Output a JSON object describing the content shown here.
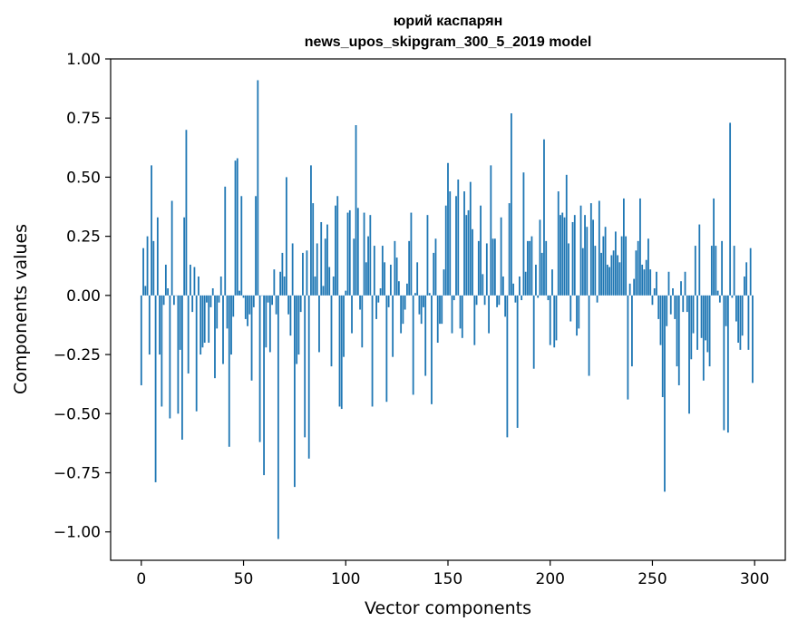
{
  "chart_data": {
    "type": "bar",
    "title": "юрий каспарян",
    "subtitle": "news_upos_skipgram_300_5_2019 model",
    "xlabel": "Vector components",
    "ylabel": "Components values",
    "xlim": [
      -15,
      315
    ],
    "ylim": [
      -1.12,
      1.0
    ],
    "xticks": [
      0,
      50,
      100,
      150,
      200,
      250,
      300
    ],
    "xtick_labels": [
      "0",
      "50",
      "100",
      "150",
      "200",
      "250",
      "300"
    ],
    "yticks": [
      1.0,
      0.75,
      0.5,
      0.25,
      0.0,
      -0.25,
      -0.5,
      -0.75,
      -1.0
    ],
    "ytick_labels": [
      "1.00",
      "0.75",
      "0.50",
      "0.25",
      "0.00",
      "−0.25",
      "−0.50",
      "−0.75",
      "−1.00"
    ],
    "grid": false,
    "bar_color": "#1f77b4",
    "values": [
      -0.38,
      0.2,
      0.04,
      0.25,
      -0.25,
      0.55,
      0.23,
      -0.79,
      0.33,
      -0.25,
      -0.47,
      -0.04,
      0.13,
      0.03,
      -0.52,
      0.4,
      -0.04,
      0.0,
      -0.5,
      -0.23,
      -0.61,
      0.33,
      0.7,
      -0.33,
      0.13,
      -0.07,
      0.12,
      -0.49,
      0.08,
      -0.25,
      -0.22,
      -0.2,
      -0.03,
      -0.2,
      -0.05,
      0.03,
      -0.35,
      -0.14,
      -0.03,
      0.08,
      -0.29,
      0.46,
      -0.14,
      -0.64,
      -0.25,
      -0.09,
      0.57,
      0.58,
      0.02,
      0.42,
      -0.01,
      -0.1,
      -0.13,
      -0.08,
      -0.36,
      -0.05,
      0.42,
      0.91,
      -0.62,
      0.0,
      -0.76,
      -0.22,
      -0.03,
      -0.24,
      -0.04,
      0.11,
      -0.08,
      -1.03,
      0.1,
      0.18,
      0.08,
      0.5,
      -0.08,
      -0.17,
      0.22,
      -0.81,
      -0.29,
      -0.25,
      -0.07,
      0.18,
      -0.6,
      0.19,
      -0.69,
      0.55,
      0.39,
      0.08,
      0.22,
      -0.24,
      0.31,
      0.04,
      0.24,
      0.3,
      0.12,
      -0.3,
      0.08,
      0.38,
      0.42,
      -0.47,
      -0.48,
      -0.26,
      0.02,
      0.35,
      0.36,
      -0.16,
      0.24,
      0.72,
      0.37,
      -0.06,
      -0.22,
      0.35,
      0.14,
      0.25,
      0.34,
      -0.47,
      0.21,
      -0.1,
      -0.03,
      0.03,
      0.21,
      0.14,
      -0.45,
      -0.05,
      0.13,
      -0.26,
      0.23,
      0.16,
      0.06,
      -0.16,
      -0.12,
      -0.06,
      0.05,
      0.23,
      0.35,
      -0.42,
      0.01,
      0.14,
      -0.08,
      -0.12,
      -0.05,
      -0.34,
      0.34,
      0.01,
      -0.46,
      0.18,
      0.24,
      -0.2,
      -0.12,
      -0.12,
      0.11,
      0.38,
      0.56,
      0.44,
      -0.16,
      -0.02,
      0.42,
      0.49,
      -0.14,
      -0.18,
      0.44,
      0.34,
      0.36,
      0.48,
      0.28,
      -0.21,
      -0.04,
      0.23,
      0.38,
      0.09,
      -0.04,
      0.22,
      -0.16,
      0.55,
      0.24,
      0.24,
      -0.05,
      -0.04,
      0.33,
      0.08,
      -0.09,
      -0.6,
      0.39,
      0.77,
      0.05,
      -0.03,
      -0.56,
      0.08,
      -0.02,
      0.52,
      0.1,
      0.23,
      0.23,
      0.25,
      -0.31,
      0.13,
      -0.01,
      0.32,
      0.18,
      0.66,
      0.23,
      -0.02,
      -0.21,
      0.11,
      -0.22,
      -0.19,
      0.44,
      0.34,
      0.35,
      0.33,
      0.51,
      0.22,
      -0.11,
      0.31,
      0.34,
      -0.17,
      -0.14,
      0.38,
      0.2,
      0.34,
      0.29,
      -0.34,
      0.39,
      0.32,
      0.21,
      -0.03,
      0.4,
      0.18,
      0.25,
      0.29,
      0.13,
      0.12,
      0.17,
      0.19,
      0.27,
      0.17,
      0.14,
      0.25,
      0.41,
      0.25,
      -0.44,
      0.05,
      -0.3,
      0.07,
      0.19,
      0.23,
      0.41,
      0.13,
      0.11,
      0.15,
      0.24,
      0.11,
      -0.04,
      0.03,
      0.1,
      -0.1,
      -0.21,
      -0.43,
      -0.83,
      -0.13,
      0.1,
      -0.08,
      0.03,
      -0.1,
      -0.3,
      -0.38,
      0.06,
      -0.07,
      0.1,
      -0.07,
      -0.5,
      -0.27,
      -0.16,
      0.21,
      -0.23,
      0.3,
      -0.18,
      -0.36,
      -0.19,
      -0.24,
      -0.3,
      0.21,
      0.41,
      0.21,
      0.02,
      -0.03,
      0.23,
      -0.57,
      -0.13,
      -0.58,
      0.73,
      -0.01,
      0.21,
      -0.11,
      -0.2,
      -0.23,
      -0.17,
      0.08,
      0.14,
      -0.23,
      0.2,
      -0.37
    ]
  }
}
